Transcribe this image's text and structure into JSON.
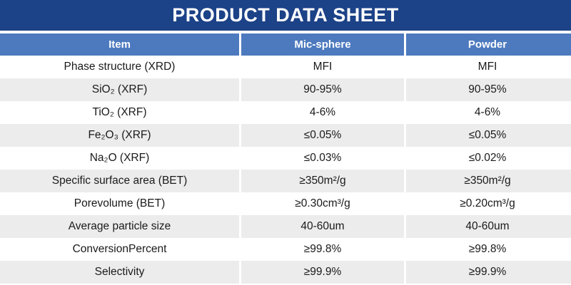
{
  "title": "PRODUCT DATA SHEET",
  "colors": {
    "title_bar": "#1C4287",
    "header_row": "#4D7ABE",
    "row_stripe": "#ECECEC",
    "text": "#1A1A1A",
    "header_text": "#FFFFFF"
  },
  "table": {
    "columns": [
      "Item",
      "Mic-sphere",
      "Powder"
    ],
    "rows": [
      [
        "Phase structure (XRD)",
        "MFI",
        "MFI"
      ],
      [
        "SiO₂ (XRF)",
        "90-95%",
        "90-95%"
      ],
      [
        "TiO₂ (XRF)",
        "4-6%",
        "4-6%"
      ],
      [
        "Fe₂O₃ (XRF)",
        "≤0.05%",
        "≤0.05%"
      ],
      [
        "Na₂O (XRF)",
        "≤0.03%",
        "≤0.02%"
      ],
      [
        "Specific surface area (BET)",
        "≥350m²/g",
        "≥350m²/g"
      ],
      [
        "Porevolume (BET)",
        "≥0.30cm³/g",
        "≥0.20cm³/g"
      ],
      [
        "Average particle size",
        "40-60um",
        "40-60um"
      ],
      [
        "ConversionPercent",
        "≥99.8%",
        "≥99.8%"
      ],
      [
        "Selectivity",
        "≥99.9%",
        "≥99.9%"
      ]
    ]
  }
}
